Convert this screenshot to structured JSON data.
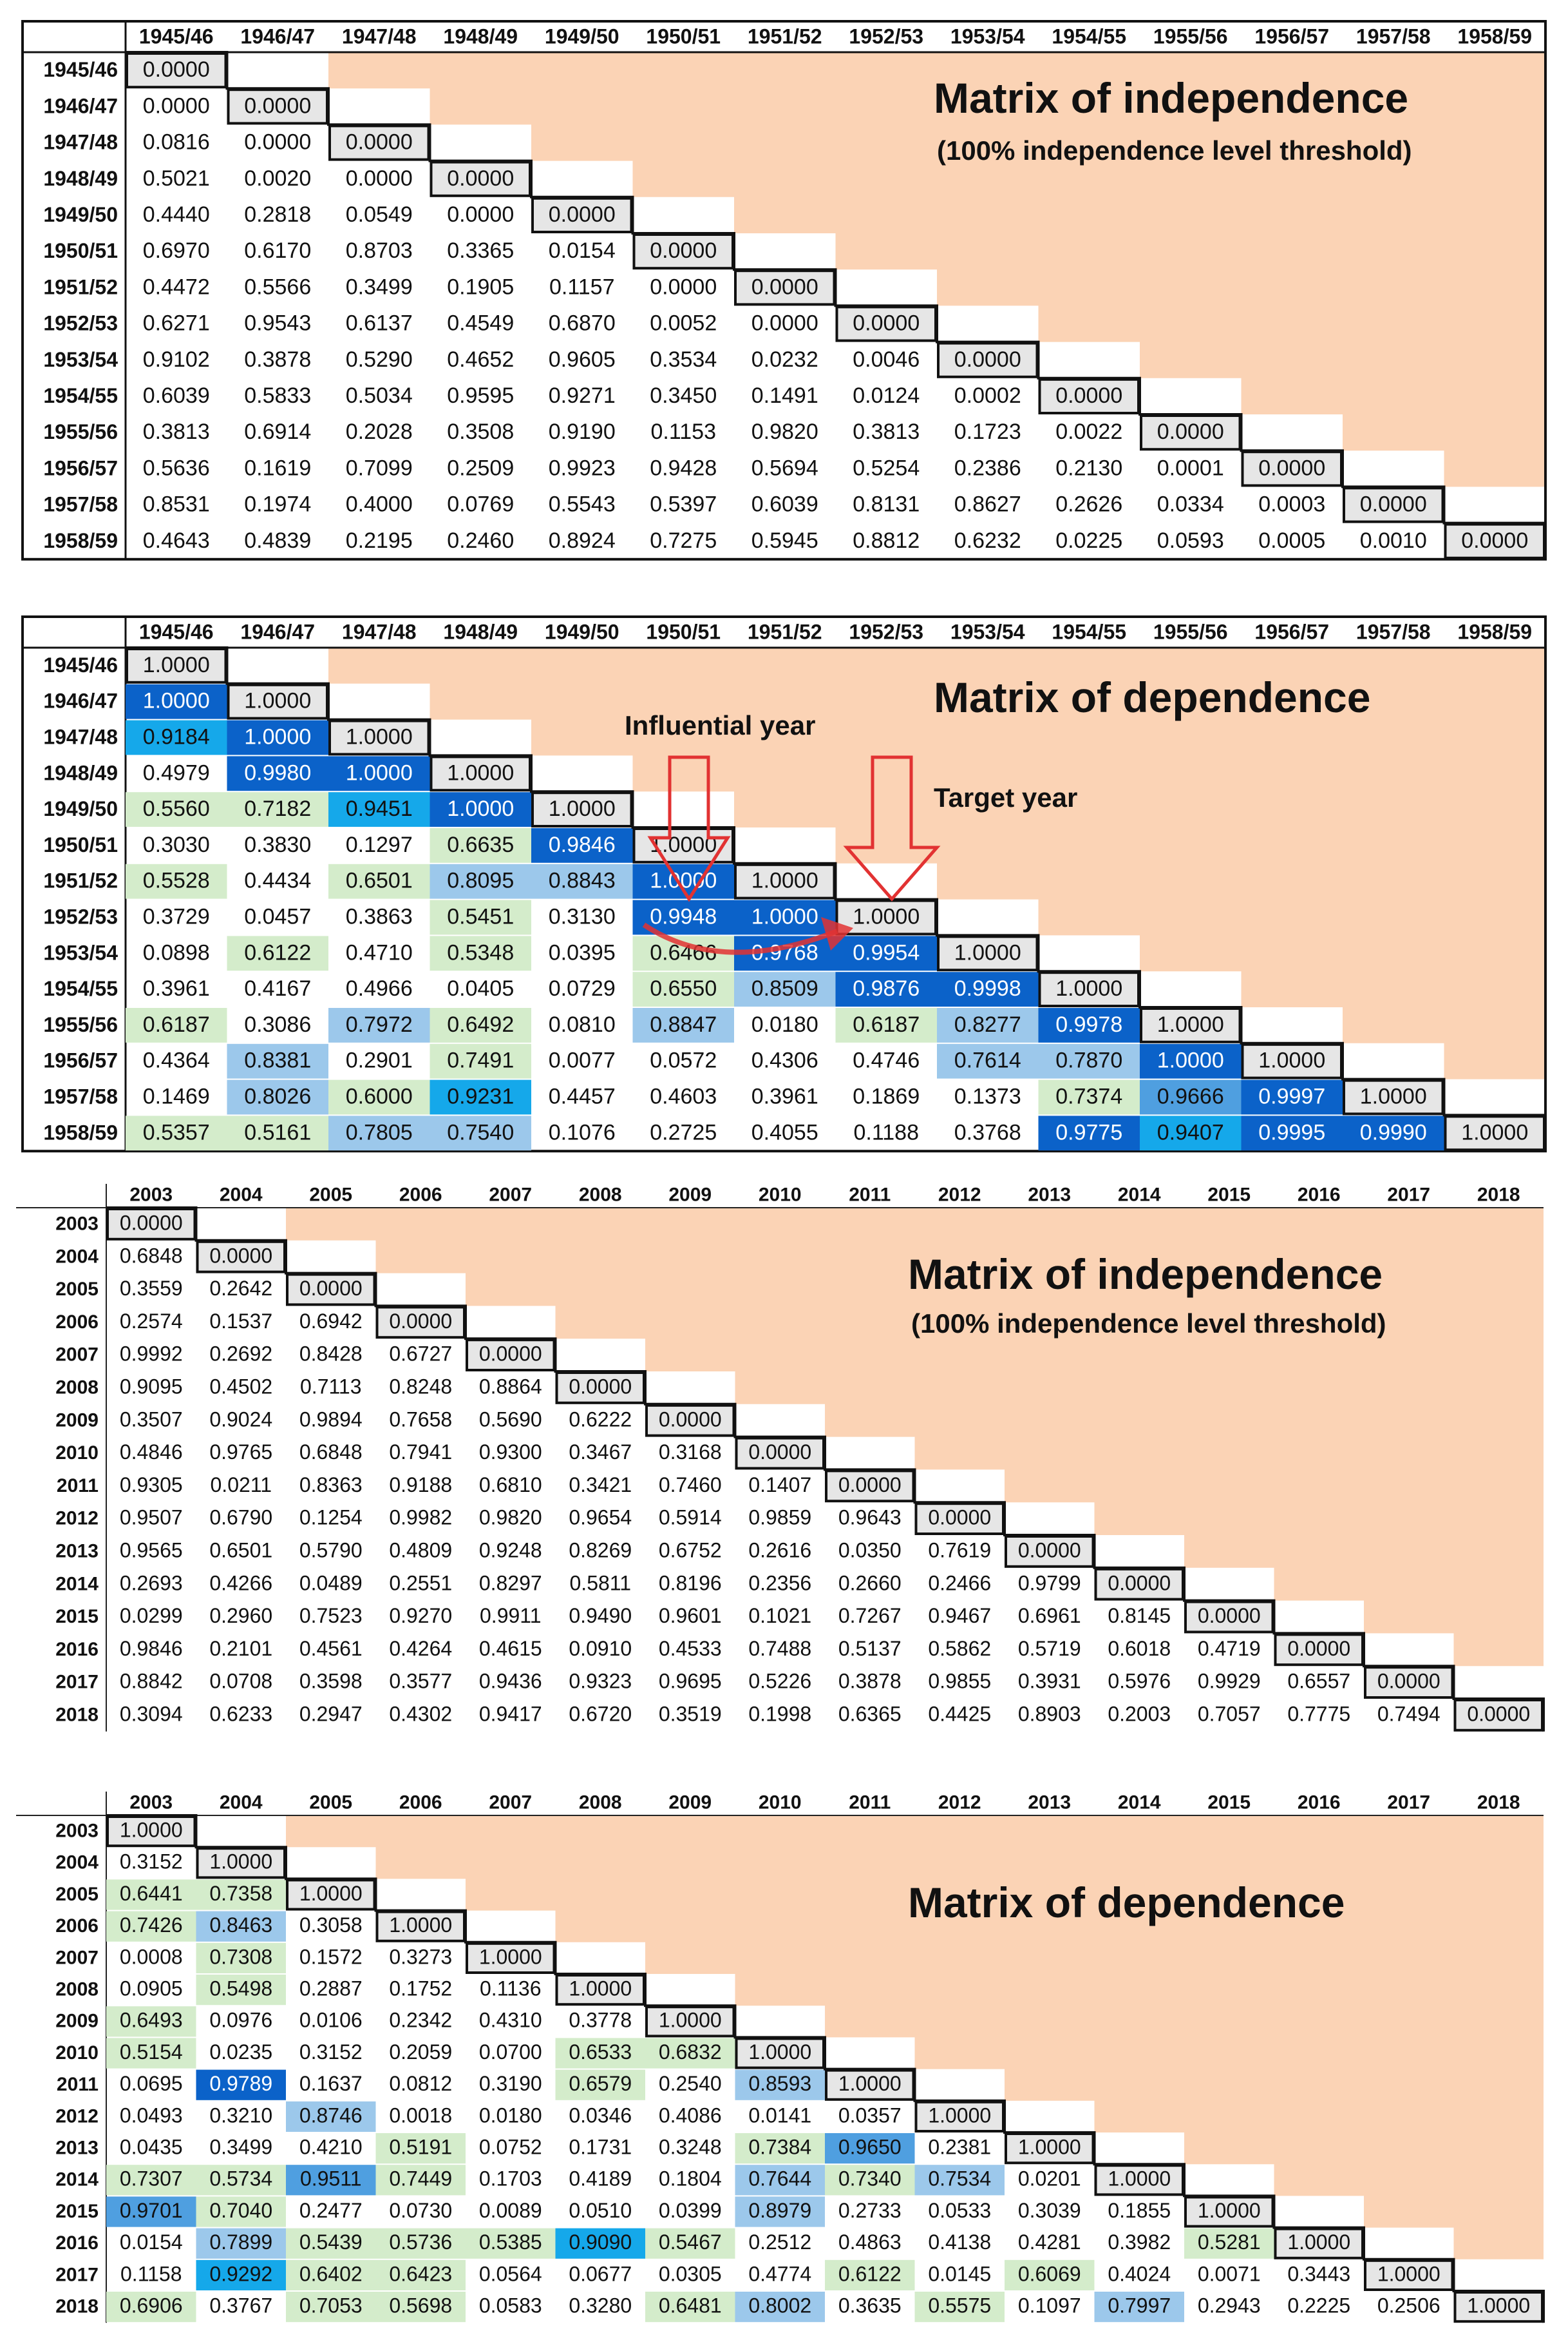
{
  "colors": {
    "peach": "#fbd3b5",
    "diag_fill": "#e6e6e6",
    "light_green": "#d4eccb",
    "light_blue": "#9cc8eb",
    "mid_blue": "#4f9fe0",
    "bright_blue": "#15a8ea",
    "dark_blue": "#0b62c9",
    "arrow_red": "#e23232"
  },
  "chart_data": [
    {
      "type": "table",
      "title": "Matrix of independence",
      "subtitle": "(100% independence level threshold)",
      "years": [
        "1945/46",
        "1946/47",
        "1947/48",
        "1948/49",
        "1949/50",
        "1950/51",
        "1951/52",
        "1952/53",
        "1953/54",
        "1954/55",
        "1955/56",
        "1956/57",
        "1957/58",
        "1958/59"
      ],
      "rows": [
        [
          "0.0000"
        ],
        [
          "0.0000",
          "0.0000"
        ],
        [
          "0.0816",
          "0.0000",
          "0.0000"
        ],
        [
          "0.5021",
          "0.0020",
          "0.0000",
          "0.0000"
        ],
        [
          "0.4440",
          "0.2818",
          "0.0549",
          "0.0000",
          "0.0000"
        ],
        [
          "0.6970",
          "0.6170",
          "0.8703",
          "0.3365",
          "0.0154",
          "0.0000"
        ],
        [
          "0.4472",
          "0.5566",
          "0.3499",
          "0.1905",
          "0.1157",
          "0.0000",
          "0.0000"
        ],
        [
          "0.6271",
          "0.9543",
          "0.6137",
          "0.4549",
          "0.6870",
          "0.0052",
          "0.0000",
          "0.0000"
        ],
        [
          "0.9102",
          "0.3878",
          "0.5290",
          "0.4652",
          "0.9605",
          "0.3534",
          "0.0232",
          "0.0046",
          "0.0000"
        ],
        [
          "0.6039",
          "0.5833",
          "0.5034",
          "0.9595",
          "0.9271",
          "0.3450",
          "0.1491",
          "0.0124",
          "0.0002",
          "0.0000"
        ],
        [
          "0.3813",
          "0.6914",
          "0.2028",
          "0.3508",
          "0.9190",
          "0.1153",
          "0.9820",
          "0.3813",
          "0.1723",
          "0.0022",
          "0.0000"
        ],
        [
          "0.5636",
          "0.1619",
          "0.7099",
          "0.2509",
          "0.9923",
          "0.9428",
          "0.5694",
          "0.5254",
          "0.2386",
          "0.2130",
          "0.0001",
          "0.0000"
        ],
        [
          "0.8531",
          "0.1974",
          "0.4000",
          "0.0769",
          "0.5543",
          "0.5397",
          "0.6039",
          "0.8131",
          "0.8627",
          "0.2626",
          "0.0334",
          "0.0003",
          "0.0000"
        ],
        [
          "0.4643",
          "0.4839",
          "0.2195",
          "0.2460",
          "0.8924",
          "0.7275",
          "0.5945",
          "0.8812",
          "0.6232",
          "0.0225",
          "0.0593",
          "0.0005",
          "0.0010",
          "0.0000"
        ]
      ]
    },
    {
      "type": "table",
      "title": "Matrix of dependence",
      "annotations": [
        "Influential year",
        "Target year"
      ],
      "years": [
        "1945/46",
        "1946/47",
        "1947/48",
        "1948/49",
        "1949/50",
        "1950/51",
        "1951/52",
        "1952/53",
        "1953/54",
        "1954/55",
        "1955/56",
        "1956/57",
        "1957/58",
        "1958/59"
      ],
      "rows": [
        [
          "1.0000"
        ],
        [
          "1.0000",
          "1.0000"
        ],
        [
          "0.9184",
          "1.0000",
          "1.0000"
        ],
        [
          "0.4979",
          "0.9980",
          "1.0000",
          "1.0000"
        ],
        [
          "0.5560",
          "0.7182",
          "0.9451",
          "1.0000",
          "1.0000"
        ],
        [
          "0.3030",
          "0.3830",
          "0.1297",
          "0.6635",
          "0.9846",
          "1.0000"
        ],
        [
          "0.5528",
          "0.4434",
          "0.6501",
          "0.8095",
          "0.8843",
          "1.0000",
          "1.0000"
        ],
        [
          "0.3729",
          "0.0457",
          "0.3863",
          "0.5451",
          "0.3130",
          "0.9948",
          "1.0000",
          "1.0000"
        ],
        [
          "0.0898",
          "0.6122",
          "0.4710",
          "0.5348",
          "0.0395",
          "0.6466",
          "0.9768",
          "0.9954",
          "1.0000"
        ],
        [
          "0.3961",
          "0.4167",
          "0.4966",
          "0.0405",
          "0.0729",
          "0.6550",
          "0.8509",
          "0.9876",
          "0.9998",
          "1.0000"
        ],
        [
          "0.6187",
          "0.3086",
          "0.7972",
          "0.6492",
          "0.0810",
          "0.8847",
          "0.0180",
          "0.6187",
          "0.8277",
          "0.9978",
          "1.0000"
        ],
        [
          "0.4364",
          "0.8381",
          "0.2901",
          "0.7491",
          "0.0077",
          "0.0572",
          "0.4306",
          "0.4746",
          "0.7614",
          "0.7870",
          "1.0000",
          "1.0000"
        ],
        [
          "0.1469",
          "0.8026",
          "0.6000",
          "0.9231",
          "0.4457",
          "0.4603",
          "0.3961",
          "0.1869",
          "0.1373",
          "0.7374",
          "0.9666",
          "0.9997",
          "1.0000"
        ],
        [
          "0.5357",
          "0.5161",
          "0.7805",
          "0.7540",
          "0.1076",
          "0.2725",
          "0.4055",
          "0.1188",
          "0.3768",
          "0.9775",
          "0.9407",
          "0.9995",
          "0.9990",
          "1.0000"
        ]
      ]
    },
    {
      "type": "table",
      "title": "Matrix of independence",
      "subtitle": "(100% independence level threshold)",
      "years": [
        "2003",
        "2004",
        "2005",
        "2006",
        "2007",
        "2008",
        "2009",
        "2010",
        "2011",
        "2012",
        "2013",
        "2014",
        "2015",
        "2016",
        "2017",
        "2018"
      ],
      "rows": [
        [
          "0.0000"
        ],
        [
          "0.6848",
          "0.0000"
        ],
        [
          "0.3559",
          "0.2642",
          "0.0000"
        ],
        [
          "0.2574",
          "0.1537",
          "0.6942",
          "0.0000"
        ],
        [
          "0.9992",
          "0.2692",
          "0.8428",
          "0.6727",
          "0.0000"
        ],
        [
          "0.9095",
          "0.4502",
          "0.7113",
          "0.8248",
          "0.8864",
          "0.0000"
        ],
        [
          "0.3507",
          "0.9024",
          "0.9894",
          "0.7658",
          "0.5690",
          "0.6222",
          "0.0000"
        ],
        [
          "0.4846",
          "0.9765",
          "0.6848",
          "0.7941",
          "0.9300",
          "0.3467",
          "0.3168",
          "0.0000"
        ],
        [
          "0.9305",
          "0.0211",
          "0.8363",
          "0.9188",
          "0.6810",
          "0.3421",
          "0.7460",
          "0.1407",
          "0.0000"
        ],
        [
          "0.9507",
          "0.6790",
          "0.1254",
          "0.9982",
          "0.9820",
          "0.9654",
          "0.5914",
          "0.9859",
          "0.9643",
          "0.0000"
        ],
        [
          "0.9565",
          "0.6501",
          "0.5790",
          "0.4809",
          "0.9248",
          "0.8269",
          "0.6752",
          "0.2616",
          "0.0350",
          "0.7619",
          "0.0000"
        ],
        [
          "0.2693",
          "0.4266",
          "0.0489",
          "0.2551",
          "0.8297",
          "0.5811",
          "0.8196",
          "0.2356",
          "0.2660",
          "0.2466",
          "0.9799",
          "0.0000"
        ],
        [
          "0.0299",
          "0.2960",
          "0.7523",
          "0.9270",
          "0.9911",
          "0.9490",
          "0.9601",
          "0.1021",
          "0.7267",
          "0.9467",
          "0.6961",
          "0.8145",
          "0.0000"
        ],
        [
          "0.9846",
          "0.2101",
          "0.4561",
          "0.4264",
          "0.4615",
          "0.0910",
          "0.4533",
          "0.7488",
          "0.5137",
          "0.5862",
          "0.5719",
          "0.6018",
          "0.4719",
          "0.0000"
        ],
        [
          "0.8842",
          "0.0708",
          "0.3598",
          "0.3577",
          "0.9436",
          "0.9323",
          "0.9695",
          "0.5226",
          "0.3878",
          "0.9855",
          "0.3931",
          "0.5976",
          "0.9929",
          "0.6557",
          "0.0000"
        ],
        [
          "0.3094",
          "0.6233",
          "0.2947",
          "0.4302",
          "0.9417",
          "0.6720",
          "0.3519",
          "0.1998",
          "0.6365",
          "0.4425",
          "0.8903",
          "0.2003",
          "0.7057",
          "0.7775",
          "0.7494",
          "0.0000"
        ]
      ]
    },
    {
      "type": "table",
      "title": "Matrix of dependence",
      "years": [
        "2003",
        "2004",
        "2005",
        "2006",
        "2007",
        "2008",
        "2009",
        "2010",
        "2011",
        "2012",
        "2013",
        "2014",
        "2015",
        "2016",
        "2017",
        "2018"
      ],
      "rows": [
        [
          "1.0000"
        ],
        [
          "0.3152",
          "1.0000"
        ],
        [
          "0.6441",
          "0.7358",
          "1.0000"
        ],
        [
          "0.7426",
          "0.8463",
          "0.3058",
          "1.0000"
        ],
        [
          "0.0008",
          "0.7308",
          "0.1572",
          "0.3273",
          "1.0000"
        ],
        [
          "0.0905",
          "0.5498",
          "0.2887",
          "0.1752",
          "0.1136",
          "1.0000"
        ],
        [
          "0.6493",
          "0.0976",
          "0.0106",
          "0.2342",
          "0.4310",
          "0.3778",
          "1.0000"
        ],
        [
          "0.5154",
          "0.0235",
          "0.3152",
          "0.2059",
          "0.0700",
          "0.6533",
          "0.6832",
          "1.0000"
        ],
        [
          "0.0695",
          "0.9789",
          "0.1637",
          "0.0812",
          "0.3190",
          "0.6579",
          "0.2540",
          "0.8593",
          "1.0000"
        ],
        [
          "0.0493",
          "0.3210",
          "0.8746",
          "0.0018",
          "0.0180",
          "0.0346",
          "0.4086",
          "0.0141",
          "0.0357",
          "1.0000"
        ],
        [
          "0.0435",
          "0.3499",
          "0.4210",
          "0.5191",
          "0.0752",
          "0.1731",
          "0.3248",
          "0.7384",
          "0.9650",
          "0.2381",
          "1.0000"
        ],
        [
          "0.7307",
          "0.5734",
          "0.9511",
          "0.7449",
          "0.1703",
          "0.4189",
          "0.1804",
          "0.7644",
          "0.7340",
          "0.7534",
          "0.0201",
          "1.0000"
        ],
        [
          "0.9701",
          "0.7040",
          "0.2477",
          "0.0730",
          "0.0089",
          "0.0510",
          "0.0399",
          "0.8979",
          "0.2733",
          "0.0533",
          "0.3039",
          "0.1855",
          "1.0000"
        ],
        [
          "0.0154",
          "0.7899",
          "0.5439",
          "0.5736",
          "0.5385",
          "0.9090",
          "0.5467",
          "0.2512",
          "0.4863",
          "0.4138",
          "0.4281",
          "0.3982",
          "0.5281",
          "1.0000"
        ],
        [
          "0.1158",
          "0.9292",
          "0.6402",
          "0.6423",
          "0.0564",
          "0.0677",
          "0.0305",
          "0.4774",
          "0.6122",
          "0.0145",
          "0.6069",
          "0.4024",
          "0.0071",
          "0.3443",
          "1.0000"
        ],
        [
          "0.6906",
          "0.3767",
          "0.7053",
          "0.5698",
          "0.0583",
          "0.3280",
          "0.6481",
          "0.8002",
          "0.3635",
          "0.5575",
          "0.1097",
          "0.7997",
          "0.2943",
          "0.2225",
          "0.2506",
          "1.0000"
        ]
      ]
    }
  ]
}
